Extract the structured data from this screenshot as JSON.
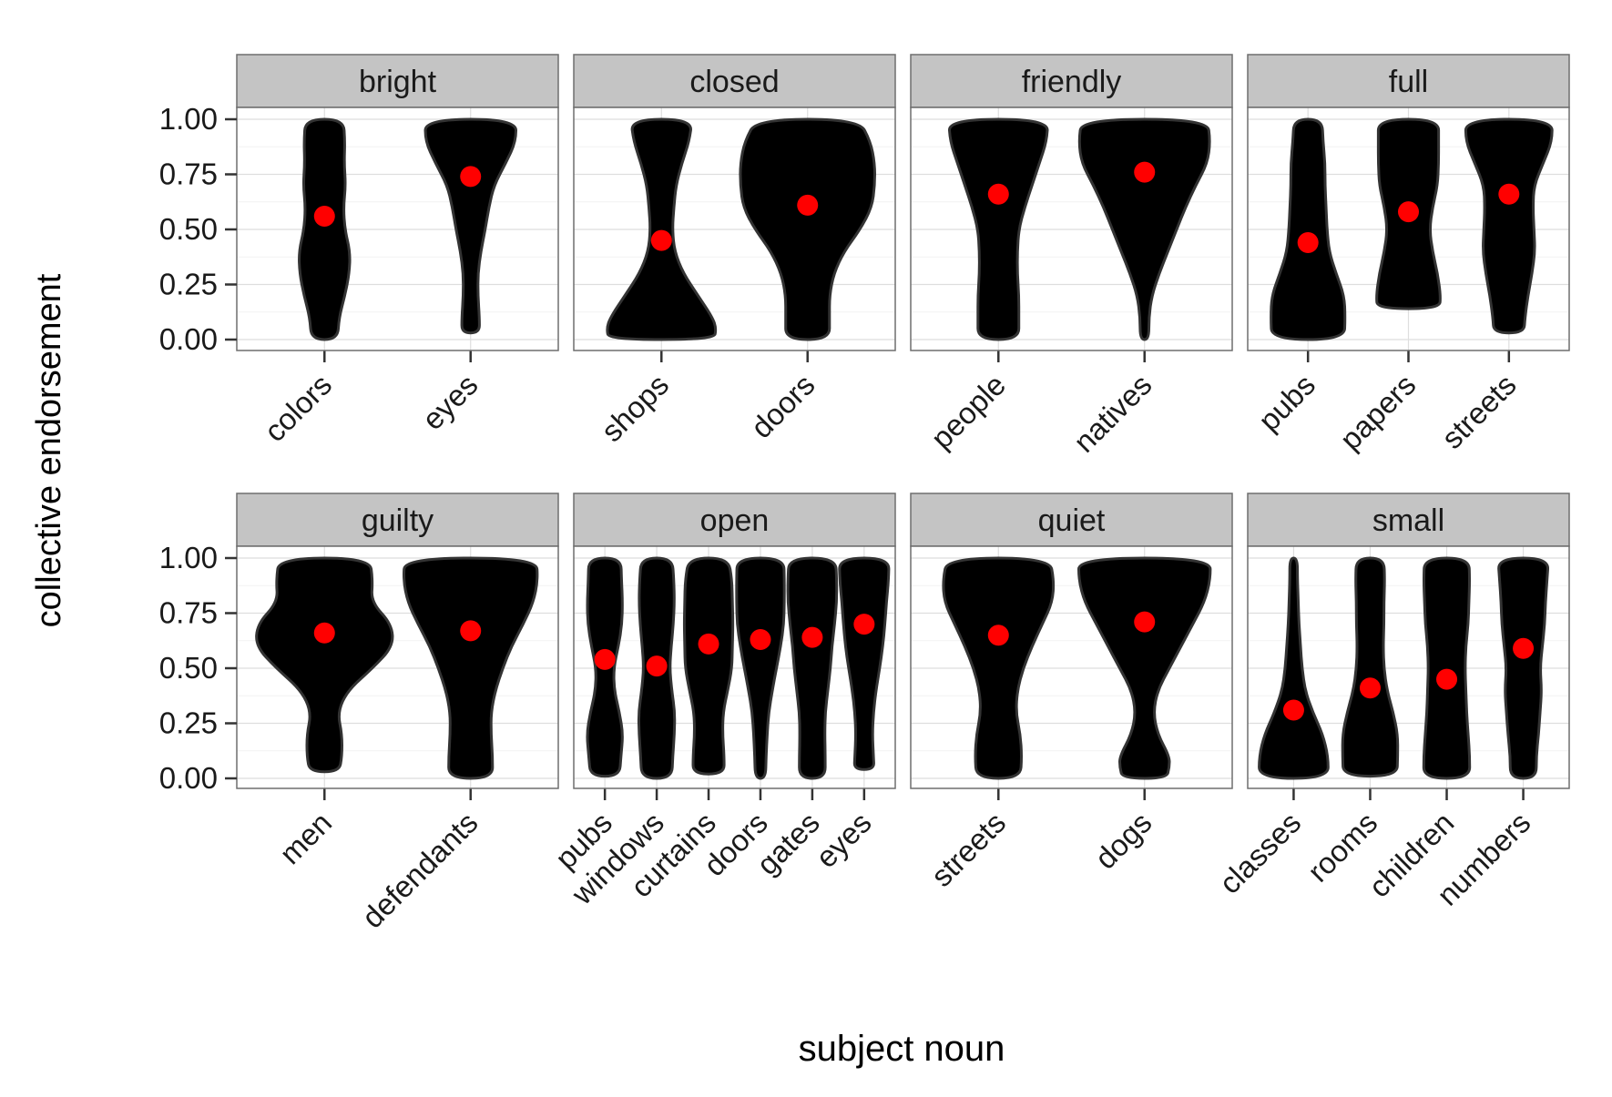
{
  "chart_data": {
    "type": "violin",
    "xlabel": "subject noun",
    "ylabel": "collective endorsement",
    "ylim": [
      0,
      1
    ],
    "yticks": [
      "0.00",
      "0.25",
      "0.50",
      "0.75",
      "1.00"
    ],
    "ytick_values": [
      0,
      0.25,
      0.5,
      0.75,
      1.0
    ],
    "grid": true,
    "point_color": "#ff0000",
    "violin_fill": "#000000",
    "strip_color": "#c4c4c4",
    "panels": [
      {
        "title": "bright",
        "categories": [
          "colors",
          "eyes"
        ],
        "means": [
          0.56,
          0.74
        ],
        "violins": [
          {
            "y": [
              0.0,
              0.1,
              0.2,
              0.3,
              0.4,
              0.5,
              0.6,
              0.7,
              0.8,
              0.9,
              1.0
            ],
            "w": [
              0.18,
              0.2,
              0.28,
              0.34,
              0.35,
              0.28,
              0.26,
              0.29,
              0.27,
              0.28,
              0.26
            ]
          },
          {
            "y": [
              0.03,
              0.1,
              0.2,
              0.3,
              0.4,
              0.5,
              0.6,
              0.7,
              0.8,
              0.9,
              1.0
            ],
            "w": [
              0.12,
              0.12,
              0.1,
              0.1,
              0.14,
              0.2,
              0.25,
              0.32,
              0.48,
              0.62,
              0.62
            ]
          }
        ]
      },
      {
        "title": "closed",
        "categories": [
          "shops",
          "doors"
        ],
        "means": [
          0.45,
          0.61
        ],
        "violins": [
          {
            "y": [
              0.0,
              0.05,
              0.1,
              0.2,
              0.3,
              0.4,
              0.5,
              0.6,
              0.7,
              0.8,
              0.9,
              1.0
            ],
            "w": [
              0.72,
              0.75,
              0.7,
              0.5,
              0.3,
              0.18,
              0.15,
              0.17,
              0.2,
              0.28,
              0.38,
              0.42
            ]
          },
          {
            "y": [
              0.0,
              0.1,
              0.2,
              0.3,
              0.4,
              0.5,
              0.6,
              0.7,
              0.8,
              0.9,
              1.0
            ],
            "w": [
              0.3,
              0.3,
              0.3,
              0.36,
              0.5,
              0.72,
              0.88,
              0.92,
              0.92,
              0.86,
              0.7
            ]
          }
        ]
      },
      {
        "title": "friendly",
        "categories": [
          "people",
          "natives"
        ],
        "means": [
          0.66,
          0.76
        ],
        "violins": [
          {
            "y": [
              0.0,
              0.1,
              0.2,
              0.3,
              0.4,
              0.5,
              0.6,
              0.7,
              0.8,
              0.9,
              1.0
            ],
            "w": [
              0.28,
              0.28,
              0.28,
              0.26,
              0.26,
              0.28,
              0.36,
              0.46,
              0.56,
              0.66,
              0.68
            ]
          },
          {
            "y": [
              0.0,
              0.1,
              0.2,
              0.3,
              0.4,
              0.5,
              0.6,
              0.7,
              0.8,
              0.9,
              1.0
            ],
            "w": [
              0.06,
              0.06,
              0.1,
              0.2,
              0.32,
              0.44,
              0.56,
              0.7,
              0.86,
              0.9,
              0.86
            ]
          }
        ]
      },
      {
        "title": "full",
        "categories": [
          "pubs",
          "papers",
          "streets"
        ],
        "means": [
          0.44,
          0.58,
          0.66
        ],
        "violins": [
          {
            "y": [
              0.0,
              0.1,
              0.2,
              0.3,
              0.4,
              0.5,
              0.6,
              0.7,
              0.8,
              0.9,
              1.0
            ],
            "w": [
              0.72,
              0.74,
              0.72,
              0.56,
              0.42,
              0.38,
              0.36,
              0.34,
              0.34,
              0.3,
              0.28
            ]
          },
          {
            "y": [
              0.14,
              0.2,
              0.3,
              0.4,
              0.5,
              0.6,
              0.7,
              0.8,
              0.9,
              1.0
            ],
            "w": [
              0.62,
              0.64,
              0.58,
              0.48,
              0.42,
              0.48,
              0.58,
              0.6,
              0.6,
              0.6
            ]
          },
          {
            "y": [
              0.03,
              0.1,
              0.2,
              0.3,
              0.4,
              0.5,
              0.6,
              0.7,
              0.8,
              0.9,
              1.0
            ],
            "w": [
              0.3,
              0.32,
              0.38,
              0.46,
              0.52,
              0.5,
              0.48,
              0.5,
              0.68,
              0.86,
              0.86
            ]
          }
        ]
      },
      {
        "title": "guilty",
        "categories": [
          "men",
          "defendants"
        ],
        "means": [
          0.66,
          0.67
        ],
        "violins": [
          {
            "y": [
              0.03,
              0.1,
              0.2,
              0.3,
              0.4,
              0.5,
              0.6,
              0.7,
              0.8,
              0.9,
              1.0
            ],
            "w": [
              0.2,
              0.24,
              0.24,
              0.18,
              0.32,
              0.66,
              0.94,
              0.92,
              0.64,
              0.66,
              0.62
            ]
          },
          {
            "y": [
              0.0,
              0.1,
              0.2,
              0.3,
              0.4,
              0.5,
              0.6,
              0.7,
              0.8,
              0.9,
              1.0
            ],
            "w": [
              0.3,
              0.3,
              0.28,
              0.28,
              0.34,
              0.44,
              0.56,
              0.72,
              0.86,
              0.92,
              0.9
            ]
          }
        ]
      },
      {
        "title": "open",
        "categories": [
          "pubs",
          "windows",
          "curtains",
          "doors",
          "gates",
          "eyes"
        ],
        "means": [
          0.54,
          0.51,
          0.61,
          0.63,
          0.64,
          0.7
        ],
        "violins": [
          {
            "y": [
              0.01,
              0.1,
              0.2,
              0.3,
              0.4,
              0.5,
              0.6,
              0.7,
              0.8,
              0.9,
              1.0
            ],
            "w": [
              0.56,
              0.62,
              0.7,
              0.56,
              0.36,
              0.34,
              0.52,
              0.66,
              0.68,
              0.64,
              0.62
            ]
          },
          {
            "y": [
              0.0,
              0.1,
              0.2,
              0.3,
              0.4,
              0.5,
              0.6,
              0.7,
              0.8,
              0.9,
              1.0
            ],
            "w": [
              0.58,
              0.62,
              0.68,
              0.7,
              0.58,
              0.5,
              0.56,
              0.64,
              0.68,
              0.66,
              0.6
            ]
          },
          {
            "y": [
              0.02,
              0.1,
              0.2,
              0.3,
              0.4,
              0.5,
              0.6,
              0.7,
              0.8,
              0.9,
              1.0
            ],
            "w": [
              0.6,
              0.6,
              0.54,
              0.56,
              0.74,
              0.9,
              0.92,
              0.94,
              0.92,
              0.9,
              0.76
            ]
          },
          {
            "y": [
              0.0,
              0.1,
              0.2,
              0.3,
              0.4,
              0.5,
              0.6,
              0.7,
              0.8,
              0.9,
              1.0
            ],
            "w": [
              0.2,
              0.22,
              0.26,
              0.32,
              0.46,
              0.62,
              0.78,
              0.9,
              0.92,
              0.92,
              0.9
            ]
          },
          {
            "y": [
              0.0,
              0.1,
              0.2,
              0.3,
              0.4,
              0.5,
              0.6,
              0.7,
              0.8,
              0.9,
              1.0
            ],
            "w": [
              0.5,
              0.5,
              0.48,
              0.5,
              0.6,
              0.7,
              0.76,
              0.86,
              0.94,
              0.94,
              0.9
            ]
          },
          {
            "y": [
              0.04,
              0.1,
              0.2,
              0.3,
              0.4,
              0.5,
              0.6,
              0.7,
              0.8,
              0.9,
              1.0
            ],
            "w": [
              0.38,
              0.36,
              0.32,
              0.36,
              0.46,
              0.6,
              0.72,
              0.8,
              0.86,
              0.94,
              0.96
            ]
          }
        ]
      },
      {
        "title": "quiet",
        "categories": [
          "streets",
          "dogs"
        ],
        "means": [
          0.65,
          0.71
        ],
        "violins": [
          {
            "y": [
              0.0,
              0.1,
              0.2,
              0.3,
              0.4,
              0.5,
              0.6,
              0.7,
              0.8,
              0.9,
              1.0
            ],
            "w": [
              0.3,
              0.32,
              0.3,
              0.24,
              0.26,
              0.34,
              0.46,
              0.6,
              0.74,
              0.76,
              0.7
            ]
          },
          {
            "y": [
              0.0,
              0.05,
              0.1,
              0.2,
              0.3,
              0.4,
              0.5,
              0.6,
              0.7,
              0.8,
              0.9,
              1.0
            ],
            "w": [
              0.3,
              0.34,
              0.34,
              0.18,
              0.12,
              0.18,
              0.34,
              0.5,
              0.66,
              0.82,
              0.9,
              0.9
            ]
          }
        ]
      },
      {
        "title": "small",
        "categories": [
          "classes",
          "rooms",
          "children",
          "numbers"
        ],
        "means": [
          0.31,
          0.41,
          0.45,
          0.59
        ],
        "violins": [
          {
            "y": [
              0.0,
              0.1,
              0.2,
              0.3,
              0.4,
              0.5,
              0.6,
              0.7,
              0.8,
              0.9,
              1.0
            ],
            "w": [
              0.9,
              0.9,
              0.76,
              0.5,
              0.3,
              0.22,
              0.18,
              0.14,
              0.12,
              0.1,
              0.1
            ]
          },
          {
            "y": [
              0.01,
              0.1,
              0.2,
              0.3,
              0.4,
              0.5,
              0.6,
              0.7,
              0.8,
              0.9,
              1.0
            ],
            "w": [
              0.7,
              0.72,
              0.72,
              0.6,
              0.44,
              0.36,
              0.34,
              0.36,
              0.36,
              0.38,
              0.36
            ]
          },
          {
            "y": [
              0.0,
              0.1,
              0.2,
              0.3,
              0.4,
              0.5,
              0.6,
              0.7,
              0.8,
              0.9,
              1.0
            ],
            "w": [
              0.6,
              0.6,
              0.56,
              0.52,
              0.5,
              0.48,
              0.5,
              0.56,
              0.58,
              0.6,
              0.58
            ]
          },
          {
            "y": [
              0.0,
              0.1,
              0.2,
              0.3,
              0.4,
              0.5,
              0.6,
              0.7,
              0.8,
              0.9,
              1.0
            ],
            "w": [
              0.34,
              0.34,
              0.4,
              0.44,
              0.48,
              0.44,
              0.5,
              0.56,
              0.58,
              0.62,
              0.66
            ]
          }
        ]
      }
    ]
  }
}
